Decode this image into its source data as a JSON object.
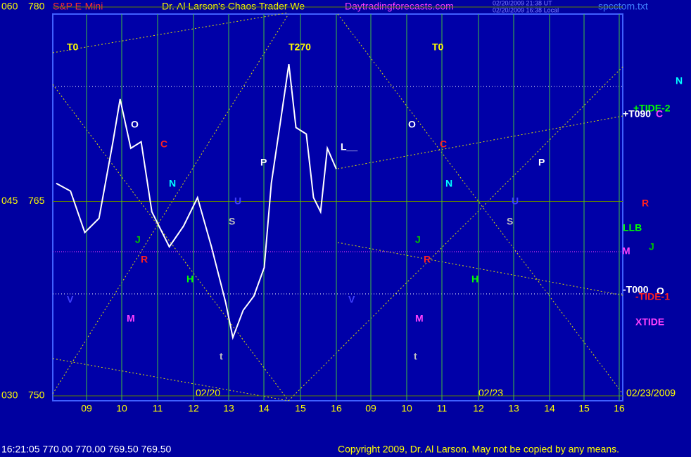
{
  "chart_data": {
    "type": "line",
    "title": "S&P E-Mini",
    "subtitle": "Dr. Al Larson's Chaos Trader We",
    "site": "Daytradingforecasts.com",
    "timestamp_ut": "02/20/2009 21:38 UT",
    "timestamp_local": "02/20/2009 16:38 Local",
    "file": "spcctom.txt",
    "quote": "16:21:05  770.00 770.00 769.50 769.50",
    "copyright": "Copyright 2009, Dr. Al Larson. May not be copied by any means.",
    "dates": [
      "02/20",
      "02/23",
      "02/23/2009"
    ],
    "categories": [
      "09",
      "10",
      "11",
      "12",
      "13",
      "14",
      "15",
      "16",
      "09",
      "10",
      "11",
      "12",
      "13",
      "14",
      "15",
      "16"
    ],
    "ylim": [
      750,
      780
    ],
    "yticks": [
      750,
      765,
      780
    ],
    "y2lim": [
      30,
      60
    ],
    "y2ticks": [
      {
        "value": 30,
        "label": "030"
      },
      {
        "value": 45,
        "label": "045"
      },
      {
        "value": 60,
        "label": "060"
      }
    ],
    "grid": true,
    "series": [
      {
        "name": "price",
        "color": "#ffffff",
        "x": [
          8.15,
          8.55,
          8.95,
          9.35,
          9.74,
          9.94,
          10.24,
          10.53,
          10.83,
          11.32,
          11.72,
          12.11,
          12.5,
          12.9,
          13.1,
          13.39,
          13.69,
          13.98,
          14.18,
          14.47,
          14.67,
          14.87,
          15.16,
          15.36,
          15.56,
          15.75,
          16.0
        ],
        "values": [
          766.4,
          765.8,
          762.6,
          763.7,
          769.6,
          772.9,
          769.1,
          769.6,
          764.2,
          761.5,
          763.1,
          765.3,
          761.5,
          757.2,
          754.5,
          756.6,
          757.7,
          759.9,
          766.4,
          771.8,
          775.6,
          770.7,
          770.2,
          765.3,
          764.2,
          769.1,
          767.5
        ]
      }
    ],
    "annotations": [
      {
        "text": "T0",
        "color": "#ffff00"
      },
      {
        "text": "T270",
        "color": "#ffff00"
      },
      {
        "text": "T0",
        "color": "#ffff00"
      },
      {
        "text": "O",
        "color": "#ffffff"
      },
      {
        "text": "C",
        "color": "#ff2020"
      },
      {
        "text": "N",
        "color": "#00ffff"
      },
      {
        "text": "P",
        "color": "#ffffff"
      },
      {
        "text": "S",
        "color": "#c0c0c0"
      },
      {
        "text": "U",
        "color": "#4040ff"
      },
      {
        "text": "J",
        "color": "#00c000"
      },
      {
        "text": "H",
        "color": "#00ff00"
      },
      {
        "text": "R",
        "color": "#ff2020"
      },
      {
        "text": "M",
        "color": "#ff40ff"
      },
      {
        "text": "V",
        "color": "#4040ff"
      },
      {
        "text": "t",
        "color": "#c0c0c0"
      },
      {
        "text": "O",
        "color": "#ffffff"
      },
      {
        "text": "C",
        "color": "#ff2020"
      },
      {
        "text": "N",
        "color": "#00ffff"
      },
      {
        "text": "P",
        "color": "#ffffff"
      },
      {
        "text": "S",
        "color": "#c0c0c0"
      },
      {
        "text": "U",
        "color": "#4040ff"
      },
      {
        "text": "J",
        "color": "#00c000"
      },
      {
        "text": "H",
        "color": "#00ff00"
      },
      {
        "text": "R",
        "color": "#ff2020"
      },
      {
        "text": "M",
        "color": "#ff40ff"
      },
      {
        "text": "V",
        "color": "#4040ff"
      },
      {
        "text": "t",
        "color": "#c0c0c0"
      },
      {
        "text": "L__",
        "color": "#ffffff"
      },
      {
        "text": "N",
        "color": "#00ffff"
      },
      {
        "text": "+TIDE-2",
        "color": "#00ff00"
      },
      {
        "text": "+T090",
        "color": "#ffffff"
      },
      {
        "text": "C",
        "color": "#ff40ff"
      },
      {
        "text": "R",
        "color": "#ff2020"
      },
      {
        "text": "LLB",
        "color": "#00ff00"
      },
      {
        "text": "J",
        "color": "#00c000"
      },
      {
        "text": "M",
        "color": "#ff40ff"
      },
      {
        "text": "-T000",
        "color": "#ffffff"
      },
      {
        "text": "O",
        "color": "#ffffff"
      },
      {
        "text": "-TIDE-1",
        "color": "#ff2020"
      },
      {
        "text": "XTIDE",
        "color": "#ff40ff"
      }
    ]
  }
}
